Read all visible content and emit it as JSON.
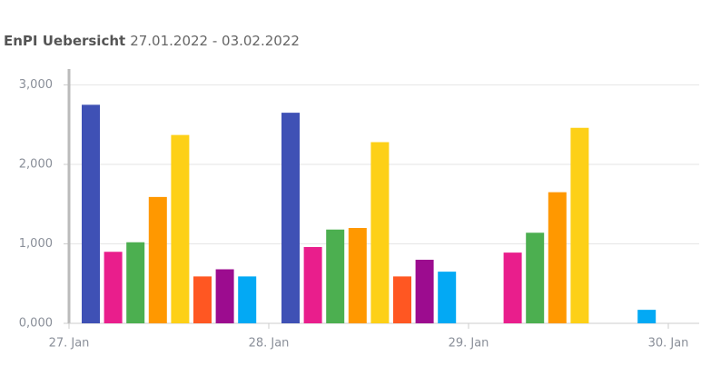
{
  "chart_data": {
    "type": "bar",
    "title": "EnPI Uebersicht",
    "subtitle": "27.01.2022 - 03.02.2022",
    "xticks": [
      "27. Jan",
      "28. Jan",
      "29. Jan",
      "30. Jan"
    ],
    "series": [
      {
        "color": "#3f51b5",
        "values": [
          2750,
          2650,
          null
        ]
      },
      {
        "color": "#e91e8c",
        "values": [
          900,
          960,
          890
        ]
      },
      {
        "color": "#4caf50",
        "values": [
          1020,
          1180,
          1140
        ]
      },
      {
        "color": "#ff9800",
        "values": [
          1590,
          1200,
          1650
        ]
      },
      {
        "color": "#fdd017",
        "values": [
          2370,
          2280,
          2460
        ]
      },
      {
        "color": "#ff5722",
        "values": [
          590,
          590,
          null
        ]
      },
      {
        "color": "#9c0c8f",
        "values": [
          680,
          800,
          null
        ]
      },
      {
        "color": "#03a9f4",
        "values": [
          590,
          650,
          170
        ]
      }
    ],
    "ylim": [
      0,
      3200
    ],
    "yticks": [
      {
        "value": 0,
        "label": "0,000"
      },
      {
        "value": 1000,
        "label": "1,000"
      },
      {
        "value": 2000,
        "label": "2,000"
      },
      {
        "value": 3000,
        "label": "3,000"
      }
    ],
    "grid": true
  }
}
